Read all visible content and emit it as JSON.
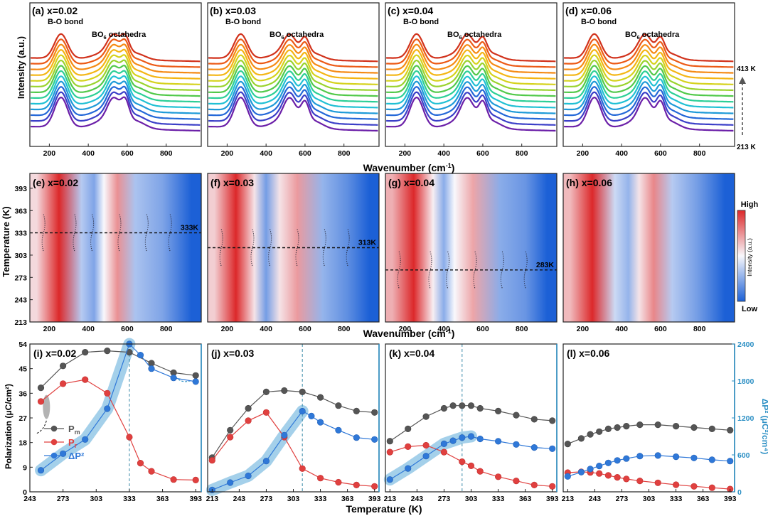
{
  "figure": {
    "row1_xlabel": "Wavenumber (cm",
    "row1_xlabel_sup": "-1",
    "row1_xlabel_end": ")",
    "row2_xlabel": "Wavenumber (cm",
    "row2_xlabel_sup": "-1",
    "row2_xlabel_end": ")",
    "row3_xlabel": "Temperature (K)",
    "row1_ylabel": "Intensity (a.u.)",
    "row2_ylabel": "Temperature (K)",
    "row3_ylabel_left": "Polarization (μC/cm²)",
    "row3_ylabel_right": "ΔP² (μC²/cm⁴)",
    "temp_top": "413 K",
    "temp_bottom": "213 K",
    "colorbar_high": "High",
    "colorbar_low": "Low",
    "colorbar_label": "Intensity (a.u.)"
  },
  "colors": {
    "pm": "#555555",
    "pr": "#e0403f",
    "dp2": "#2f78d8",
    "red": "#dd2a2a",
    "blue": "#1f67d8",
    "right_axis": "#2b8fc4"
  },
  "chart_data": [
    {
      "type": "line",
      "panel": "(a) x=0.02",
      "title": "(a) x=0.02",
      "xlabel": "Wavenumber (cm-1)",
      "ylabel": "Intensity (a.u.)",
      "xticks": [
        200,
        400,
        600,
        800
      ],
      "xlim": [
        100,
        980
      ],
      "series_count": 13,
      "temperature_range_K": [
        213,
        413
      ],
      "annotations": [
        "B-O bond",
        "BO6 octahedra"
      ],
      "peaks_cm-1": [
        260,
        530,
        590
      ]
    },
    {
      "type": "line",
      "panel": "(b) x=0.03",
      "title": "(b) x=0.03",
      "xticks": [
        200,
        400,
        600,
        800
      ],
      "xlim": [
        100,
        980
      ],
      "series_count": 13,
      "annotations": [
        "B-O bond",
        "BO6 octahedra"
      ],
      "peaks_cm-1": [
        270,
        520,
        600
      ]
    },
    {
      "type": "line",
      "panel": "(c) x=0.04",
      "title": "(c) x=0.04",
      "xticks": [
        200,
        400,
        600,
        800
      ],
      "xlim": [
        100,
        980
      ],
      "series_count": 13,
      "annotations": [
        "B-O bond",
        "BO6 octahedra"
      ],
      "peaks_cm-1": [
        260,
        520,
        600
      ]
    },
    {
      "type": "line",
      "panel": "(d) x=0.06",
      "title": "(d) x=0.06",
      "xticks": [
        200,
        400,
        600,
        800
      ],
      "xlim": [
        100,
        980
      ],
      "series_count": 13,
      "annotations": [
        "B-O bond",
        "BO6 octahedra"
      ],
      "peaks_cm-1": [
        260,
        520,
        600
      ]
    },
    {
      "type": "heatmap",
      "panel": "(e) x=0.02",
      "title": "(e) x=0.02",
      "xticks": [
        200,
        400,
        600,
        800
      ],
      "yticks": [
        213,
        243,
        273,
        303,
        333,
        363,
        393
      ],
      "xlim": [
        100,
        980
      ],
      "ylim": [
        213,
        413
      ],
      "transition_K": 333,
      "transition_label": "333K",
      "bands": [
        {
          "from": 100,
          "to": 170,
          "level": 0.15
        },
        {
          "from": 170,
          "to": 330,
          "level": 1.0
        },
        {
          "from": 330,
          "to": 400,
          "level": -0.3
        },
        {
          "from": 400,
          "to": 460,
          "level": -0.55
        },
        {
          "from": 460,
          "to": 500,
          "level": 0.0
        },
        {
          "from": 500,
          "to": 600,
          "level": 0.5
        },
        {
          "from": 600,
          "to": 680,
          "level": -0.35
        },
        {
          "from": 680,
          "to": 880,
          "level": -0.55
        },
        {
          "from": 880,
          "to": 980,
          "level": -1.0
        }
      ]
    },
    {
      "type": "heatmap",
      "panel": "(f) x=0.03",
      "title": "(f) x=0.03",
      "xticks": [
        200,
        400,
        600,
        800
      ],
      "yticks": [
        213,
        243,
        273,
        303,
        333,
        363,
        393
      ],
      "xlim": [
        100,
        980
      ],
      "ylim": [
        213,
        413
      ],
      "transition_K": 313,
      "transition_label": "313K",
      "bands": [
        {
          "from": 100,
          "to": 170,
          "level": 0.2
        },
        {
          "from": 170,
          "to": 320,
          "level": 1.0
        },
        {
          "from": 320,
          "to": 360,
          "level": 0.1
        },
        {
          "from": 360,
          "to": 440,
          "level": -0.6
        },
        {
          "from": 440,
          "to": 500,
          "level": 0.1
        },
        {
          "from": 500,
          "to": 620,
          "level": 0.45
        },
        {
          "from": 620,
          "to": 760,
          "level": -0.45
        },
        {
          "from": 760,
          "to": 880,
          "level": -0.7
        },
        {
          "from": 880,
          "to": 980,
          "level": -1.0
        }
      ]
    },
    {
      "type": "heatmap",
      "panel": "(g) x=0.04",
      "title": "(g) x=0.04",
      "xticks": [
        200,
        400,
        600,
        800
      ],
      "yticks": [
        213,
        243,
        273,
        303,
        333,
        363,
        393
      ],
      "xlim": [
        100,
        980
      ],
      "ylim": [
        213,
        413
      ],
      "transition_K": 283,
      "transition_label": "283K",
      "bands": [
        {
          "from": 100,
          "to": 170,
          "level": 0.35
        },
        {
          "from": 170,
          "to": 320,
          "level": 1.0
        },
        {
          "from": 320,
          "to": 370,
          "level": 0.05
        },
        {
          "from": 370,
          "to": 430,
          "level": -0.5
        },
        {
          "from": 430,
          "to": 480,
          "level": 0.0
        },
        {
          "from": 480,
          "to": 620,
          "level": 0.4
        },
        {
          "from": 620,
          "to": 760,
          "level": -0.5
        },
        {
          "from": 760,
          "to": 880,
          "level": -0.65
        },
        {
          "from": 880,
          "to": 980,
          "level": -1.0
        }
      ]
    },
    {
      "type": "heatmap",
      "panel": "(h) x=0.06",
      "title": "(h) x=0.06",
      "xticks": [
        200,
        400,
        600,
        800
      ],
      "xlim": [
        100,
        980
      ],
      "ylim": [
        213,
        413
      ],
      "bands": [
        {
          "from": 100,
          "to": 170,
          "level": 0.3
        },
        {
          "from": 170,
          "to": 330,
          "level": 1.0
        },
        {
          "from": 330,
          "to": 400,
          "level": -0.2
        },
        {
          "from": 400,
          "to": 470,
          "level": -0.45
        },
        {
          "from": 470,
          "to": 510,
          "level": 0.1
        },
        {
          "from": 510,
          "to": 620,
          "level": 0.55
        },
        {
          "from": 620,
          "to": 700,
          "level": -0.3
        },
        {
          "from": 700,
          "to": 880,
          "level": -0.6
        },
        {
          "from": 880,
          "to": 980,
          "level": -1.0
        }
      ]
    },
    {
      "type": "line",
      "panel": "(i) x=0.02",
      "title": "(i) x=0.02",
      "xlim": [
        243,
        398
      ],
      "xticks": [
        243,
        273,
        303,
        333,
        363,
        393
      ],
      "ylim": [
        0,
        54
      ],
      "yticks": [
        0,
        9,
        18,
        27,
        36,
        45,
        54
      ],
      "y2lim": [
        0,
        2400
      ],
      "y2ticks": [
        0,
        600,
        1200,
        1800,
        2400
      ],
      "transition_K": 333,
      "legend": [
        "P",
        "P",
        "ΔP²"
      ],
      "legend_subscripts": [
        "m",
        "r",
        ""
      ],
      "series": [
        {
          "name": "Pm",
          "x": [
            253,
            273,
            293,
            313,
            333,
            353,
            373,
            393
          ],
          "values": [
            38,
            46,
            51,
            51.5,
            51,
            47,
            43.5,
            42.5
          ]
        },
        {
          "name": "Pr",
          "x": [
            253,
            273,
            293,
            313,
            333,
            343,
            353,
            373,
            393
          ],
          "values": [
            33,
            39.5,
            41,
            36,
            20,
            10.5,
            7.5,
            4.5,
            4.3
          ]
        },
        {
          "name": "dP2",
          "axis": "right",
          "x": [
            253,
            273,
            293,
            313,
            333,
            343,
            353,
            373,
            393
          ],
          "values": [
            350,
            620,
            850,
            1350,
            2400,
            2220,
            2000,
            1850,
            1790
          ]
        }
      ]
    },
    {
      "type": "line",
      "panel": "(j) x=0.03",
      "title": "(j) x=0.03",
      "xlim": [
        208,
        398
      ],
      "xticks": [
        213,
        243,
        273,
        303,
        333,
        363,
        393
      ],
      "ylim": [
        0,
        54
      ],
      "y2lim": [
        0,
        2400
      ],
      "transition_K": 313,
      "series": [
        {
          "name": "Pm",
          "x": [
            213,
            233,
            253,
            273,
            293,
            313,
            333,
            353,
            373,
            393
          ],
          "values": [
            12.5,
            22.5,
            30.5,
            36.5,
            37,
            36.5,
            34.5,
            31.5,
            29.5,
            29
          ]
        },
        {
          "name": "Pr",
          "x": [
            213,
            233,
            253,
            273,
            293,
            313,
            333,
            353,
            373,
            393
          ],
          "values": [
            11.5,
            20,
            26,
            29,
            20,
            8.5,
            5,
            3.5,
            2.5,
            2
          ]
        },
        {
          "name": "dP2",
          "axis": "right",
          "x": [
            213,
            233,
            253,
            273,
            293,
            313,
            323,
            333,
            353,
            373,
            393
          ],
          "values": [
            30,
            150,
            260,
            500,
            920,
            1310,
            1230,
            1130,
            1000,
            880,
            850
          ]
        }
      ]
    },
    {
      "type": "line",
      "panel": "(k) x=0.04",
      "title": "(k) x=0.04",
      "xlim": [
        208,
        398
      ],
      "xticks": [
        213,
        243,
        273,
        303,
        333,
        363,
        393
      ],
      "ylim": [
        0,
        54
      ],
      "y2lim": [
        0,
        2400
      ],
      "transition_K": 293,
      "series": [
        {
          "name": "Pm",
          "x": [
            213,
            233,
            253,
            273,
            283,
            293,
            303,
            313,
            333,
            353,
            373,
            393
          ],
          "values": [
            18.5,
            23,
            27.5,
            30.5,
            31.5,
            31.5,
            31.5,
            30.5,
            29.5,
            28,
            26.5,
            26
          ]
        },
        {
          "name": "Pr",
          "x": [
            213,
            233,
            253,
            273,
            293,
            303,
            313,
            333,
            353,
            373,
            393
          ],
          "values": [
            14.5,
            16.5,
            17,
            14.5,
            11,
            9.5,
            7.5,
            5.5,
            4,
            2.5,
            2
          ]
        },
        {
          "name": "dP2",
          "axis": "right",
          "x": [
            213,
            233,
            253,
            273,
            283,
            293,
            303,
            313,
            333,
            353,
            373,
            393
          ],
          "values": [
            200,
            380,
            580,
            780,
            830,
            880,
            900,
            860,
            820,
            770,
            720,
            700
          ]
        }
      ]
    },
    {
      "type": "line",
      "panel": "(l) x=0.06",
      "title": "(l) x=0.06",
      "xlim": [
        208,
        398
      ],
      "xticks": [
        213,
        243,
        273,
        303,
        333,
        363,
        393
      ],
      "ylim": [
        0,
        54
      ],
      "y2lim": [
        0,
        2400
      ],
      "y2ticks": [
        0,
        600,
        1200,
        1800,
        2400
      ],
      "series": [
        {
          "name": "Pm",
          "x": [
            213,
            228,
            238,
            248,
            258,
            268,
            278,
            293,
            313,
            333,
            353,
            373,
            393
          ],
          "values": [
            17.5,
            19.5,
            21,
            22,
            23,
            23.5,
            24,
            24.5,
            24.5,
            24,
            23.5,
            23,
            22.5
          ]
        },
        {
          "name": "Pr",
          "x": [
            213,
            228,
            238,
            248,
            258,
            268,
            278,
            293,
            313,
            333,
            353,
            373,
            393
          ],
          "values": [
            7,
            7.3,
            7.1,
            6.7,
            6,
            5.3,
            4.7,
            4,
            3.3,
            2.6,
            2,
            1.5,
            1
          ]
        },
        {
          "name": "dP2",
          "axis": "right",
          "x": [
            213,
            228,
            238,
            248,
            258,
            268,
            278,
            293,
            313,
            333,
            353,
            373,
            393
          ],
          "values": [
            250,
            320,
            370,
            420,
            470,
            510,
            540,
            580,
            590,
            570,
            550,
            520,
            500
          ]
        }
      ]
    }
  ]
}
